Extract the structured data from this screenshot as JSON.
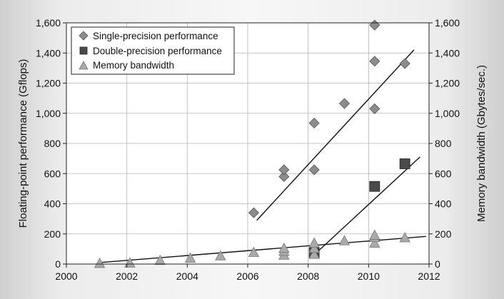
{
  "chart_data": {
    "type": "scatter",
    "title": "",
    "xlabel": "",
    "ylabel": "Floating-point performance (Gflops)",
    "y2label": "Memory bandwidth (Gbytes/sec.)",
    "xlim": [
      2000,
      2012
    ],
    "ylim": [
      0,
      1600
    ],
    "y2lim": [
      0,
      1600
    ],
    "x_ticks": [
      "2000",
      "2002",
      "2004",
      "2006",
      "2008",
      "2010",
      "2012"
    ],
    "y_ticks": [
      "0",
      "200",
      "400",
      "600",
      "800",
      "1,000",
      "1,200",
      "1,400",
      "1,600"
    ],
    "y2_ticks": [
      "0",
      "200",
      "400",
      "600",
      "800",
      "1,000",
      "1,200",
      "1,400",
      "1,600"
    ],
    "grid": true,
    "legend_position": "top-left",
    "series": [
      {
        "name": "Single-precision performance",
        "marker": "diamond",
        "color": "#8c8c8c",
        "points": [
          [
            2006.2,
            340
          ],
          [
            2007.2,
            580
          ],
          [
            2007.2,
            625
          ],
          [
            2008.2,
            935
          ],
          [
            2008.2,
            625
          ],
          [
            2009.2,
            1065
          ],
          [
            2010.2,
            1585
          ],
          [
            2010.2,
            1345
          ],
          [
            2010.2,
            1030
          ],
          [
            2011.2,
            1330
          ]
        ],
        "trend": [
          [
            2006.3,
            290
          ],
          [
            2011.5,
            1420
          ]
        ]
      },
      {
        "name": "Double-precision performance",
        "marker": "square",
        "color": "#4a4a4a",
        "points": [
          [
            2008.2,
            75
          ],
          [
            2010.2,
            515
          ],
          [
            2011.2,
            665
          ]
        ],
        "trend": [
          [
            2008.3,
            80
          ],
          [
            2011.7,
            710
          ]
        ]
      },
      {
        "name": "Memory bandwidth",
        "marker": "triangle",
        "color": "#aaaaaa",
        "points": [
          [
            2001.1,
            5
          ],
          [
            2002.1,
            8
          ],
          [
            2003.1,
            25
          ],
          [
            2004.1,
            40
          ],
          [
            2005.1,
            55
          ],
          [
            2006.2,
            78
          ],
          [
            2007.2,
            60
          ],
          [
            2007.2,
            85
          ],
          [
            2007.2,
            105
          ],
          [
            2008.2,
            65
          ],
          [
            2008.2,
            105
          ],
          [
            2008.2,
            140
          ],
          [
            2009.2,
            155
          ],
          [
            2010.2,
            140
          ],
          [
            2010.2,
            177
          ],
          [
            2010.2,
            192
          ],
          [
            2011.2,
            175
          ]
        ],
        "trend": [
          [
            2001.1,
            10
          ],
          [
            2011.9,
            183
          ]
        ]
      }
    ]
  }
}
